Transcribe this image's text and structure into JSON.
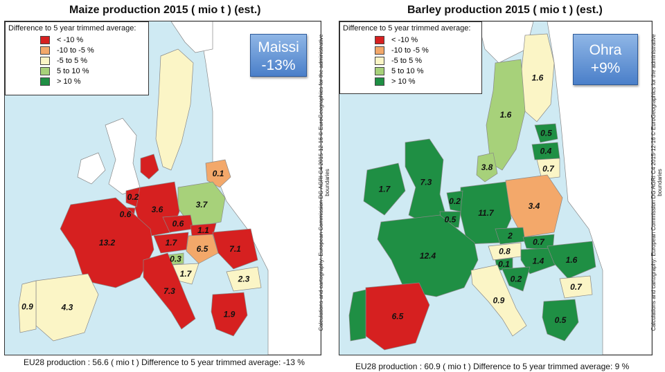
{
  "colors": {
    "lt_-10": "#d62020",
    "-10_to_-5": "#f3a86a",
    "-5_to_5": "#fbf5c6",
    "5_to_10": "#a7d17a",
    "gt_10": "#1f8f44",
    "sea": "#cfeaf3",
    "nondata_land": "#ffffff"
  },
  "maps": [
    {
      "title": "Maize production 2015 ( mio t ) (est.)",
      "legend": {
        "title": "Difference to 5 year trimmed average:",
        "items": [
          {
            "label": "< -10 %",
            "color": "#d62020"
          },
          {
            "label": "-10  to -5 %",
            "color": "#f3a86a"
          },
          {
            "label": "-5  to  5 %",
            "color": "#fbf5c6"
          },
          {
            "label": "5  to 10 %",
            "color": "#a7d17a"
          },
          {
            "label": "> 10 %",
            "color": "#1f8f44"
          }
        ]
      },
      "badge": {
        "line1": "Maissi",
        "line2": "-13%"
      },
      "credit": "Calculations and cartography: European Commission DG AGRI C4  2015-12-16  © EuroGeographics for the administrative boundaries",
      "footer": "EU28 production : 56.6 ( mio t )    Difference to 5 year trimmed average: -13 %",
      "countries": [
        {
          "name": "France",
          "value": "13.2",
          "class": "lt_-10"
        },
        {
          "name": "Germany",
          "value": "3.6",
          "class": "lt_-10"
        },
        {
          "name": "Italy",
          "value": "7.3",
          "class": "lt_-10"
        },
        {
          "name": "Spain",
          "value": "4.3",
          "class": "-5_to_5"
        },
        {
          "name": "Portugal",
          "value": "0.9",
          "class": "-5_to_5"
        },
        {
          "name": "Poland",
          "value": "3.7",
          "class": "5_to_10"
        },
        {
          "name": "Romania",
          "value": "7.1",
          "class": "lt_-10"
        },
        {
          "name": "Hungary",
          "value": "6.5",
          "class": "-10_to_-5"
        },
        {
          "name": "Bulgaria",
          "value": "2.3",
          "class": "-5_to_5"
        },
        {
          "name": "Greece",
          "value": "1.9",
          "class": "lt_-10"
        },
        {
          "name": "Croatia",
          "value": "1.7",
          "class": "-5_to_5"
        },
        {
          "name": "Austria",
          "value": "1.7",
          "class": "lt_-10"
        },
        {
          "name": "Czech Republic",
          "value": "0.6",
          "class": "lt_-10"
        },
        {
          "name": "Slovakia",
          "value": "1.1",
          "class": "lt_-10"
        },
        {
          "name": "Belgium",
          "value": "0.6",
          "class": "lt_-10"
        },
        {
          "name": "Netherlands",
          "value": "0.2",
          "class": "lt_-10"
        },
        {
          "name": "Slovenia",
          "value": "0.3",
          "class": "5_to_10"
        },
        {
          "name": "Lithuania",
          "value": "0.1",
          "class": "-10_to_-5"
        },
        {
          "name": "Denmark",
          "value": "",
          "class": "lt_-10"
        },
        {
          "name": "Sweden",
          "value": "",
          "class": "-5_to_5"
        }
      ]
    },
    {
      "title": "Barley production 2015 ( mio t ) (est.)",
      "legend": {
        "title": "Difference to 5 year trimmed average:",
        "items": [
          {
            "label": "< -10 %",
            "color": "#d62020"
          },
          {
            "label": "-10  to -5 %",
            "color": "#f3a86a"
          },
          {
            "label": "-5  to  5 %",
            "color": "#fbf5c6"
          },
          {
            "label": "5  to 10 %",
            "color": "#a7d17a"
          },
          {
            "label": "> 10 %",
            "color": "#1f8f44"
          }
        ]
      },
      "badge": {
        "line1": "Ohra",
        "line2": "+9%"
      },
      "credit": "Calculations and cartography: European Commission DG AGRI C4  2015-12-16  © EuroGeographics for the administrative boundaries",
      "footer": "EU28 production : 60.9 ( mio t )    Difference to 5 year trimmed average: 9 %",
      "countries": [
        {
          "name": "France",
          "value": "12.4",
          "class": "gt_10"
        },
        {
          "name": "Germany",
          "value": "11.7",
          "class": "gt_10"
        },
        {
          "name": "United Kingdom",
          "value": "7.3",
          "class": "gt_10"
        },
        {
          "name": "Ireland",
          "value": "1.7",
          "class": "gt_10"
        },
        {
          "name": "Spain",
          "value": "6.5",
          "class": "lt_-10"
        },
        {
          "name": "Poland",
          "value": "3.4",
          "class": "-10_to_-5"
        },
        {
          "name": "Denmark",
          "value": "3.8",
          "class": "5_to_10"
        },
        {
          "name": "Sweden",
          "value": "1.6",
          "class": "5_to_10"
        },
        {
          "name": "Finland",
          "value": "1.6",
          "class": "-5_to_5"
        },
        {
          "name": "Estonia",
          "value": "0.5",
          "class": "gt_10"
        },
        {
          "name": "Latvia",
          "value": "0.4",
          "class": "gt_10"
        },
        {
          "name": "Lithuania",
          "value": "0.7",
          "class": "-5_to_5"
        },
        {
          "name": "Czech Republic",
          "value": "2",
          "class": "gt_10"
        },
        {
          "name": "Slovakia",
          "value": "0.7",
          "class": "gt_10"
        },
        {
          "name": "Hungary",
          "value": "1.4",
          "class": "gt_10"
        },
        {
          "name": "Romania",
          "value": "1.6",
          "class": "gt_10"
        },
        {
          "name": "Austria",
          "value": "0.8",
          "class": "-5_to_5"
        },
        {
          "name": "Slovenia",
          "value": "0.1",
          "class": "gt_10"
        },
        {
          "name": "Croatia",
          "value": "0.2",
          "class": "gt_10"
        },
        {
          "name": "Italy",
          "value": "0.9",
          "class": "-5_to_5"
        },
        {
          "name": "Bulgaria",
          "value": "0.7",
          "class": "-5_to_5"
        },
        {
          "name": "Greece",
          "value": "0.5",
          "class": "gt_10"
        },
        {
          "name": "Belgium",
          "value": "0.5",
          "class": "gt_10"
        },
        {
          "name": "Netherlands",
          "value": "0.2",
          "class": "gt_10"
        },
        {
          "name": "Portugal",
          "value": "",
          "class": "gt_10"
        }
      ]
    }
  ]
}
